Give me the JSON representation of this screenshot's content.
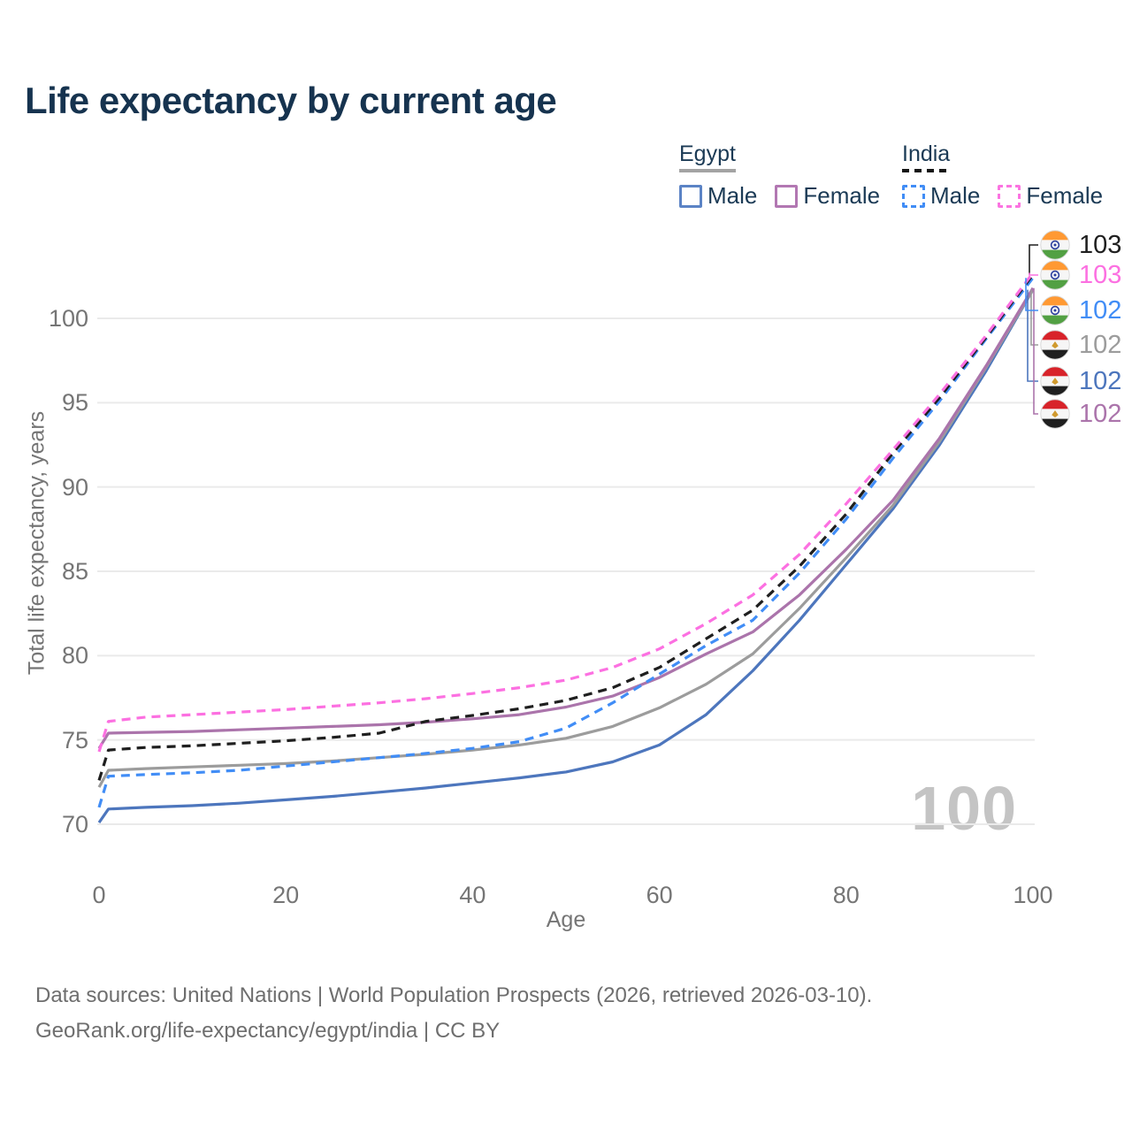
{
  "title": "Life expectancy by current age",
  "watermark": "100",
  "legend": {
    "egypt": {
      "label": "Egypt",
      "male": "Male",
      "female": "Female"
    },
    "india": {
      "label": "India",
      "male": "Male",
      "female": "Female"
    }
  },
  "footer": {
    "line1": "Data sources: United Nations | World Population Prospects (2026, retrieved 2026-03-10).",
    "line2": "GeoRank.org/life-expectancy/egypt/india | CC BY"
  },
  "colors": {
    "title_text": "#16334f",
    "axis_text": "#757575",
    "gridline": "#eaeaea",
    "watermark": "#c4c4c4",
    "egypt_male": "#4d76bd",
    "egypt_both": "#9c9c9c",
    "egypt_female": "#ab74ab",
    "india_male": "#418df6",
    "india_both": "#1f1f1f",
    "india_female": "#fc70e1"
  },
  "chart_data": {
    "type": "line",
    "title": "Life expectancy by current age",
    "xlabel": "Age",
    "ylabel": "Total life expectancy, years",
    "xlim": [
      0,
      100
    ],
    "ylim": [
      70,
      100
    ],
    "xticks": [
      0,
      20,
      40,
      60,
      80,
      100
    ],
    "yticks": [
      70,
      75,
      80,
      85,
      90,
      95,
      100
    ],
    "grid": "horizontal",
    "legend_position": "top-right",
    "x": [
      0,
      1,
      5,
      10,
      15,
      20,
      25,
      30,
      35,
      40,
      45,
      50,
      55,
      60,
      65,
      70,
      75,
      80,
      85,
      90,
      95,
      100
    ],
    "series": [
      {
        "name": "Egypt Male",
        "country": "egypt",
        "sex": "male",
        "style": "solid",
        "color": "#4d76bd",
        "end_label": "102",
        "label_row": 4,
        "values": [
          70.1,
          70.9,
          71.0,
          71.1,
          71.25,
          71.45,
          71.65,
          71.9,
          72.15,
          72.45,
          72.75,
          73.1,
          73.7,
          74.7,
          76.5,
          79.1,
          82.1,
          85.4,
          88.7,
          92.5,
          96.9,
          101.7
        ]
      },
      {
        "name": "Egypt Both sexes",
        "country": "egypt",
        "sex": "both",
        "style": "solid",
        "color": "#9c9c9c",
        "end_label": "102",
        "label_row": 3,
        "values": [
          72.2,
          73.2,
          73.3,
          73.4,
          73.5,
          73.6,
          73.75,
          73.95,
          74.15,
          74.4,
          74.7,
          75.1,
          75.8,
          76.9,
          78.3,
          80.1,
          82.8,
          85.8,
          88.9,
          92.7,
          97.1,
          101.7
        ]
      },
      {
        "name": "Egypt Female",
        "country": "egypt",
        "sex": "female",
        "style": "solid",
        "color": "#ab74ab",
        "end_label": "102",
        "label_row": 5,
        "values": [
          74.5,
          75.4,
          75.45,
          75.5,
          75.6,
          75.7,
          75.8,
          75.9,
          76.05,
          76.25,
          76.5,
          76.95,
          77.6,
          78.7,
          80.1,
          81.4,
          83.6,
          86.3,
          89.2,
          92.9,
          97.2,
          101.8
        ]
      },
      {
        "name": "India Male",
        "country": "india",
        "sex": "male",
        "style": "dashed",
        "color": "#418df6",
        "end_label": "102",
        "label_row": 2,
        "values": [
          71.0,
          72.85,
          72.95,
          73.05,
          73.2,
          73.45,
          73.7,
          73.95,
          74.2,
          74.5,
          74.9,
          75.7,
          77.2,
          78.9,
          80.6,
          82.1,
          84.9,
          88.1,
          91.7,
          95.1,
          98.8,
          102.4
        ]
      },
      {
        "name": "India Both sexes",
        "country": "india",
        "sex": "both",
        "style": "dashed",
        "color": "#1f1f1f",
        "end_label": "103",
        "label_row": 0,
        "values": [
          72.6,
          74.4,
          74.55,
          74.65,
          74.8,
          74.95,
          75.15,
          75.4,
          76.1,
          76.45,
          76.85,
          77.35,
          78.1,
          79.3,
          81.0,
          82.7,
          85.3,
          88.4,
          92.0,
          95.3,
          98.9,
          102.6
        ]
      },
      {
        "name": "India Female",
        "country": "india",
        "sex": "female",
        "style": "dashed",
        "color": "#fc70e1",
        "end_label": "103",
        "label_row": 1,
        "values": [
          74.3,
          76.1,
          76.35,
          76.5,
          76.65,
          76.8,
          77.0,
          77.2,
          77.45,
          77.75,
          78.1,
          78.55,
          79.3,
          80.4,
          81.9,
          83.6,
          86.0,
          89.0,
          92.2,
          95.5,
          99.0,
          102.7
        ]
      }
    ]
  }
}
